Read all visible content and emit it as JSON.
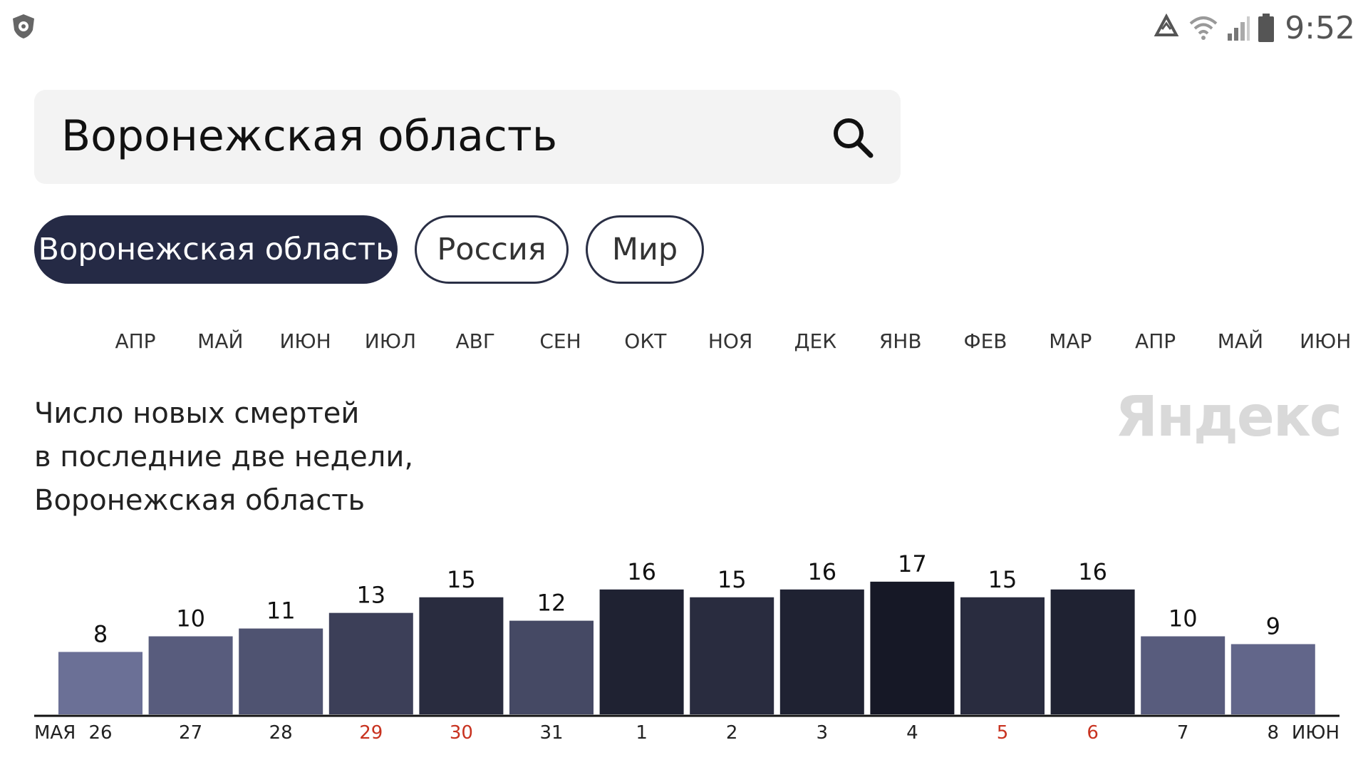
{
  "status_bar": {
    "time": "9:52",
    "left_icon": "shield-app-icon",
    "icons": [
      "recycle-icon",
      "wifi-icon",
      "signal-icon",
      "battery-icon"
    ]
  },
  "search": {
    "value": "Воронежская область",
    "button_icon": "search-icon"
  },
  "region_tabs": [
    {
      "label": "Воронежская область",
      "active": true
    },
    {
      "label": "Россия",
      "active": false
    },
    {
      "label": "Мир",
      "active": false
    }
  ],
  "month_timeline": [
    "АПР",
    "МАЙ",
    "ИЮН",
    "ИЮЛ",
    "АВГ",
    "СЕН",
    "ОКТ",
    "НОЯ",
    "ДЕК",
    "ЯНВ",
    "ФЕВ",
    "МАР",
    "АПР",
    "МАЙ",
    "ИЮН"
  ],
  "chart": {
    "title_lines": [
      "Число новых смертей",
      "в последние две недели,",
      "Воронежская область"
    ],
    "watermark": "Яндекс"
  },
  "chart_data": {
    "type": "bar",
    "title": "Число новых смертей в последние две недели, Воронежская область",
    "categories": [
      "26",
      "27",
      "28",
      "29",
      "30",
      "31",
      "1",
      "2",
      "3",
      "4",
      "5",
      "6",
      "7",
      "8"
    ],
    "values": [
      8,
      10,
      11,
      13,
      15,
      12,
      16,
      15,
      16,
      17,
      15,
      16,
      10,
      9
    ],
    "weekend_categories": [
      "29",
      "30",
      "5",
      "6"
    ],
    "month_markers": {
      "start": "МАЯ",
      "end": "ИЮН"
    },
    "ylim": [
      0,
      17
    ],
    "grid": false,
    "colors": {
      "low": "#6b7096",
      "high": "#161826",
      "weekend_label": "#c8321f",
      "axis": "#111111"
    }
  }
}
